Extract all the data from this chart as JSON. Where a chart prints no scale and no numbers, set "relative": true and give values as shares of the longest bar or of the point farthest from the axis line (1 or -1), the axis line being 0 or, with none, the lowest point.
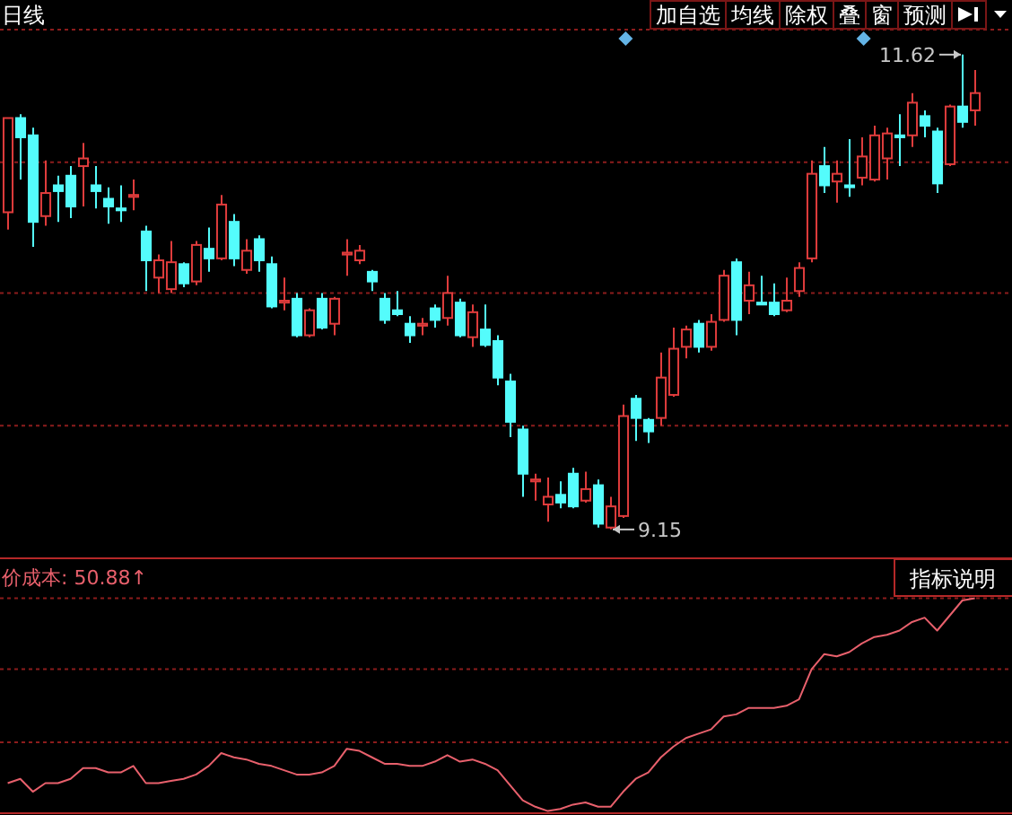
{
  "chart_data": [
    {
      "type": "candlestick",
      "title": "日线",
      "annotations": [
        "加自选",
        "均线",
        "除权",
        "叠",
        "窗",
        "预测",
        "11.62",
        "9.15"
      ],
      "categories": [
        null,
        null,
        null,
        null,
        null,
        null,
        null,
        null,
        null,
        null,
        null,
        null,
        null,
        null,
        null,
        null,
        null,
        null,
        null,
        null,
        null,
        null,
        null,
        null,
        null,
        null,
        null,
        null,
        null,
        null,
        null,
        null,
        null,
        null,
        null,
        null,
        null,
        null,
        null,
        null,
        null,
        null,
        null,
        null,
        null,
        null,
        null,
        null,
        null,
        null,
        null,
        null,
        null,
        null,
        null,
        null,
        null,
        null,
        null,
        null,
        null,
        null,
        null,
        null,
        null,
        null,
        null,
        null,
        null,
        null,
        null,
        null,
        null,
        null,
        null,
        null,
        null,
        null
      ],
      "ohlc": [
        [
          10.8,
          11.29,
          10.71,
          11.29
        ],
        [
          11.29,
          11.31,
          10.97,
          11.19
        ],
        [
          11.2,
          11.24,
          10.62,
          10.75
        ],
        [
          10.78,
          11.07,
          10.73,
          10.9
        ],
        [
          10.94,
          10.99,
          10.75,
          10.91
        ],
        [
          10.99,
          11.04,
          10.77,
          10.83
        ],
        [
          11.04,
          11.16,
          10.83,
          11.08
        ],
        [
          10.94,
          11.04,
          10.82,
          10.91
        ],
        [
          10.87,
          10.93,
          10.74,
          10.83
        ],
        [
          10.82,
          10.94,
          10.75,
          10.81
        ],
        [
          10.88,
          10.97,
          10.81,
          10.89
        ],
        [
          10.7,
          10.73,
          10.39,
          10.55
        ],
        [
          10.46,
          10.58,
          10.38,
          10.55
        ],
        [
          10.4,
          10.65,
          10.38,
          10.54
        ],
        [
          10.53,
          10.54,
          10.41,
          10.43
        ],
        [
          10.44,
          10.65,
          10.42,
          10.63
        ],
        [
          10.61,
          10.72,
          10.49,
          10.56
        ],
        [
          10.56,
          10.89,
          10.55,
          10.84
        ],
        [
          10.75,
          10.79,
          10.52,
          10.56
        ],
        [
          10.5,
          10.66,
          10.48,
          10.6
        ],
        [
          10.66,
          10.68,
          10.49,
          10.55
        ],
        [
          10.53,
          10.57,
          10.3,
          10.31
        ],
        [
          10.33,
          10.46,
          10.29,
          10.34
        ],
        [
          10.35,
          10.38,
          10.15,
          10.16
        ],
        [
          10.16,
          10.3,
          10.15,
          10.29
        ],
        [
          10.35,
          10.38,
          10.19,
          10.2
        ],
        [
          10.22,
          10.36,
          10.16,
          10.35
        ],
        [
          10.58,
          10.66,
          10.47,
          10.59
        ],
        [
          10.55,
          10.63,
          10.53,
          10.6
        ],
        [
          10.49,
          10.5,
          10.39,
          10.44
        ],
        [
          10.35,
          10.38,
          10.22,
          10.24
        ],
        [
          10.29,
          10.39,
          10.26,
          10.27
        ],
        [
          10.22,
          10.26,
          10.12,
          10.16
        ],
        [
          10.21,
          10.25,
          10.16,
          10.22
        ],
        [
          10.3,
          10.32,
          10.2,
          10.24
        ],
        [
          10.25,
          10.47,
          10.21,
          10.38
        ],
        [
          10.33,
          10.35,
          10.15,
          10.16
        ],
        [
          10.15,
          10.32,
          10.1,
          10.28
        ],
        [
          10.19,
          10.32,
          10.1,
          10.11
        ],
        [
          10.13,
          10.16,
          9.9,
          9.94
        ],
        [
          9.92,
          9.96,
          9.63,
          9.71
        ],
        [
          9.67,
          9.69,
          9.32,
          9.44
        ],
        [
          9.4,
          9.44,
          9.3,
          9.41
        ],
        [
          9.28,
          9.42,
          9.19,
          9.32
        ],
        [
          9.33,
          9.4,
          9.26,
          9.29
        ],
        [
          9.44,
          9.47,
          9.26,
          9.27
        ],
        [
          9.3,
          9.45,
          9.29,
          9.36
        ],
        [
          9.38,
          9.41,
          9.16,
          9.18
        ],
        [
          9.16,
          9.32,
          9.15,
          9.27
        ],
        [
          9.22,
          9.8,
          9.21,
          9.74
        ],
        [
          9.83,
          9.85,
          9.61,
          9.73
        ],
        [
          9.72,
          9.73,
          9.6,
          9.66
        ],
        [
          9.73,
          10.07,
          9.69,
          9.94
        ],
        [
          9.85,
          10.2,
          9.84,
          10.09
        ],
        [
          10.1,
          10.21,
          10.04,
          10.19
        ],
        [
          10.22,
          10.24,
          10.07,
          10.1
        ],
        [
          10.1,
          10.27,
          10.08,
          10.23
        ],
        [
          10.24,
          10.5,
          10.23,
          10.47
        ],
        [
          10.54,
          10.56,
          10.16,
          10.24
        ],
        [
          10.34,
          10.49,
          10.27,
          10.42
        ],
        [
          10.33,
          10.47,
          10.32,
          10.32
        ],
        [
          10.33,
          10.43,
          10.26,
          10.27
        ],
        [
          10.29,
          10.46,
          10.28,
          10.34
        ],
        [
          10.39,
          10.54,
          10.36,
          10.51
        ],
        [
          10.56,
          11.07,
          10.54,
          11.0
        ],
        [
          11.04,
          11.14,
          10.9,
          10.94
        ],
        [
          10.96,
          11.07,
          10.85,
          11.0
        ],
        [
          10.94,
          11.18,
          10.88,
          10.93
        ],
        [
          10.98,
          11.19,
          10.94,
          11.09
        ],
        [
          10.97,
          11.25,
          10.96,
          11.2
        ],
        [
          11.08,
          11.24,
          10.97,
          11.21
        ],
        [
          11.2,
          11.31,
          11.04,
          11.19
        ],
        [
          11.2,
          11.42,
          11.14,
          11.37
        ],
        [
          11.3,
          11.33,
          11.19,
          11.25
        ],
        [
          11.22,
          11.24,
          10.9,
          10.95
        ],
        [
          11.05,
          11.36,
          11.04,
          11.35
        ],
        [
          11.35,
          11.62,
          11.24,
          11.27
        ],
        [
          11.33,
          11.54,
          11.25,
          11.42
        ]
      ],
      "colors": [
        "#e03c3c",
        "#54fcfc",
        "#54fcfc",
        "#e03c3c",
        "#54fcfc",
        "#54fcfc",
        "#e03c3c",
        "#54fcfc",
        "#54fcfc",
        "#54fcfc",
        "#e03c3c",
        "#54fcfc",
        "#e03c3c",
        "#e03c3c",
        "#54fcfc",
        "#e03c3c",
        "#54fcfc",
        "#e03c3c",
        "#54fcfc",
        "#e03c3c",
        "#54fcfc",
        "#54fcfc",
        "#e03c3c",
        "#54fcfc",
        "#e03c3c",
        "#54fcfc",
        "#e03c3c",
        "#e03c3c",
        "#e03c3c",
        "#54fcfc",
        "#54fcfc",
        "#54fcfc",
        "#54fcfc",
        "#e03c3c",
        "#54fcfc",
        "#e03c3c",
        "#54fcfc",
        "#e03c3c",
        "#54fcfc",
        "#54fcfc",
        "#54fcfc",
        "#54fcfc",
        "#e03c3c",
        "#e03c3c",
        "#54fcfc",
        "#54fcfc",
        "#e03c3c",
        "#54fcfc",
        "#e03c3c",
        "#e03c3c",
        "#54fcfc",
        "#54fcfc",
        "#e03c3c",
        "#e03c3c",
        "#e03c3c",
        "#54fcfc",
        "#e03c3c",
        "#e03c3c",
        "#54fcfc",
        "#e03c3c",
        "#54fcfc",
        "#54fcfc",
        "#e03c3c",
        "#e03c3c",
        "#e03c3c",
        "#54fcfc",
        "#e03c3c",
        "#54fcfc",
        "#e03c3c",
        "#e03c3c",
        "#e03c3c",
        "#54fcfc",
        "#e03c3c",
        "#54fcfc",
        "#54fcfc",
        "#e03c3c",
        "#54fcfc",
        "#e03c3c"
      ],
      "ylim": [
        9.0,
        11.75
      ],
      "yticks": [
        {
          "value": 9.69,
          "label": null
        },
        {
          "value": 10.38,
          "label": null
        },
        {
          "value": 11.06,
          "label": null
        }
      ],
      "grid": "y"
    },
    {
      "type": "line",
      "title": "价成本: 50.88↑",
      "annotations": [
        "指标说明"
      ],
      "categories": [
        null,
        null,
        null,
        null,
        null,
        null,
        null,
        null,
        null,
        null,
        null,
        null,
        null,
        null,
        null,
        null,
        null,
        null,
        null,
        null,
        null,
        null,
        null,
        null,
        null,
        null,
        null,
        null,
        null,
        null,
        null,
        null,
        null,
        null,
        null,
        null,
        null,
        null,
        null,
        null,
        null,
        null,
        null,
        null,
        null,
        null,
        null,
        null,
        null,
        null,
        null,
        null,
        null,
        null,
        null,
        null,
        null,
        null,
        null,
        null,
        null,
        null,
        null,
        null,
        null,
        null,
        null,
        null,
        null,
        null,
        null,
        null,
        null,
        null,
        null,
        null,
        null,
        null
      ],
      "values": [
        0.14,
        0.16,
        0.1,
        0.14,
        0.14,
        0.16,
        0.21,
        0.21,
        0.19,
        0.19,
        0.22,
        0.14,
        0.14,
        0.15,
        0.16,
        0.18,
        0.22,
        0.28,
        0.26,
        0.25,
        0.23,
        0.22,
        0.2,
        0.18,
        0.18,
        0.19,
        0.22,
        0.3,
        0.29,
        0.26,
        0.23,
        0.23,
        0.22,
        0.22,
        0.24,
        0.27,
        0.24,
        0.25,
        0.23,
        0.2,
        0.13,
        0.06,
        0.03,
        0.01,
        0.02,
        0.04,
        0.05,
        0.03,
        0.03,
        0.1,
        0.16,
        0.19,
        0.26,
        0.31,
        0.35,
        0.37,
        0.39,
        0.45,
        0.46,
        0.49,
        0.49,
        0.49,
        0.5,
        0.53,
        0.67,
        0.74,
        0.73,
        0.75,
        0.79,
        0.82,
        0.83,
        0.85,
        0.89,
        0.91,
        0.85,
        0.92,
        0.99,
        1.0
      ],
      "color": "#e8606c",
      "relative": true,
      "ref_lines": [
        {
          "axis": "y",
          "value": 0.33,
          "color": "#8c1c1c",
          "line_style": "dotted"
        },
        {
          "axis": "y",
          "value": 0.67,
          "color": "#8c1c1c",
          "line_style": "dotted"
        }
      ]
    }
  ]
}
